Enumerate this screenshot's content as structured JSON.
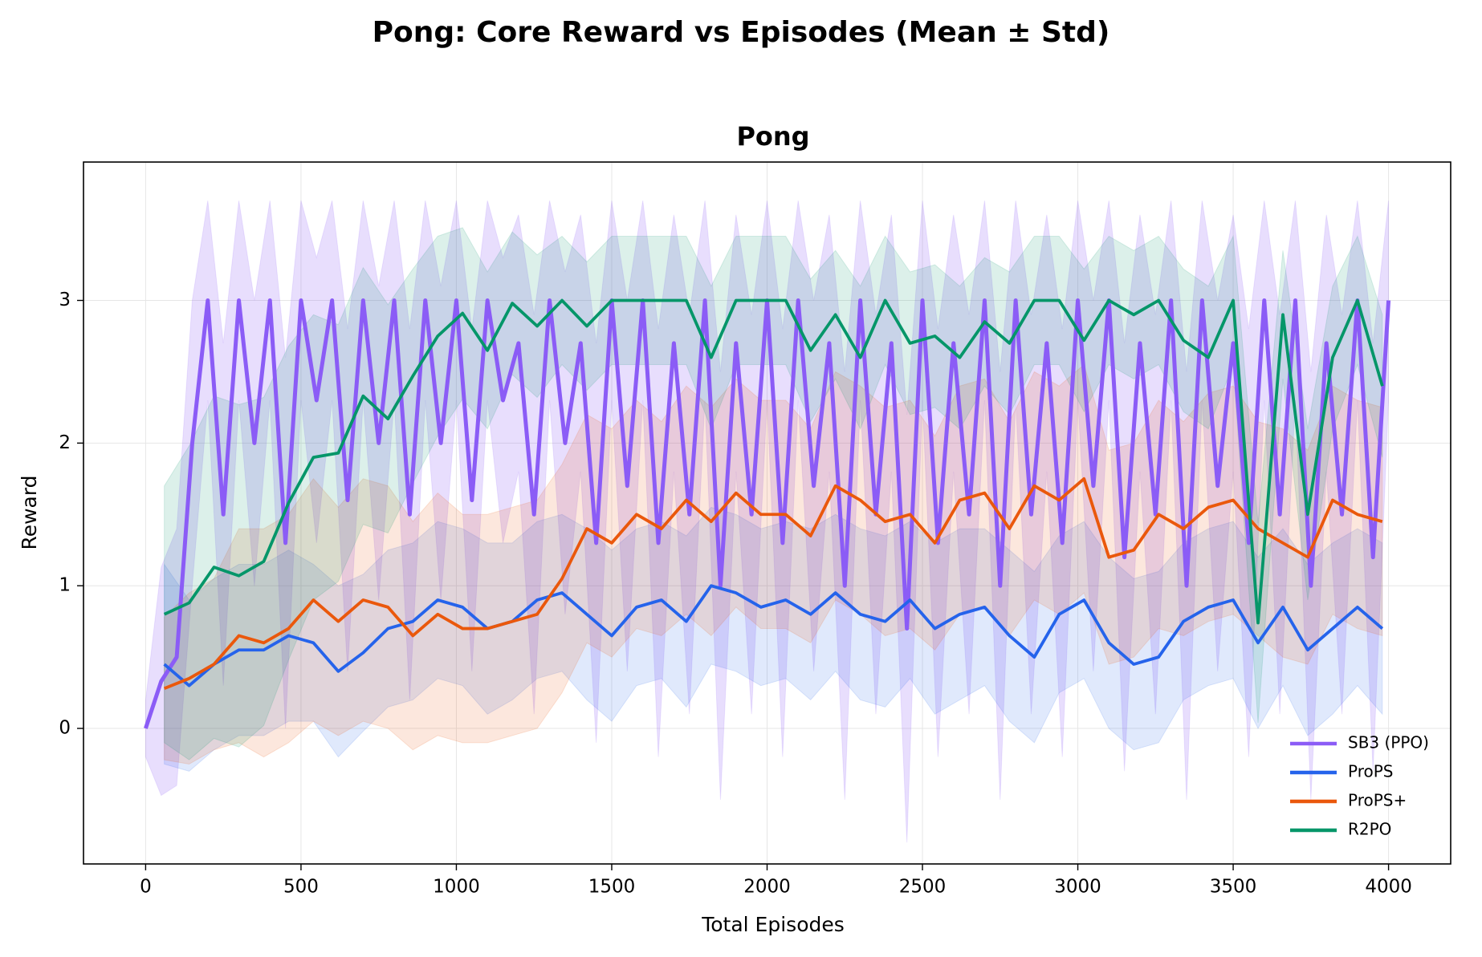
{
  "chart_data": {
    "type": "line",
    "title": "Pong: Core Reward vs Episodes (Mean ± Std)",
    "subtitle": "Pong",
    "x_label": "Total Episodes",
    "y_label": "Reward",
    "xlim": [
      -200,
      4200
    ],
    "ylim": [
      -0.95,
      3.97
    ],
    "xticks": [
      0,
      500,
      1000,
      1500,
      2000,
      2500,
      3000,
      3500,
      4000
    ],
    "yticks": [
      0,
      1,
      2,
      3
    ],
    "grid": true,
    "legend": "lower right",
    "x": [
      60,
      140,
      220,
      300,
      380,
      460,
      540,
      620,
      700,
      780,
      860,
      940,
      1020,
      1100,
      1180,
      1260,
      1340,
      1420,
      1500,
      1580,
      1660,
      1740,
      1820,
      1900,
      1980,
      2060,
      2140,
      2220,
      2300,
      2380,
      2460,
      2540,
      2620,
      2700,
      2780,
      2860,
      2940,
      3020,
      3100,
      3180,
      3260,
      3340,
      3420,
      3500,
      3580,
      3660,
      3740,
      3820,
      3900,
      3980
    ],
    "series": [
      {
        "name": "SB3 (PPO)",
        "color": "#8b5cf6",
        "x": [
          0,
          50,
          100,
          150,
          200,
          250,
          300,
          350,
          400,
          450,
          500,
          550,
          600,
          650,
          700,
          750,
          800,
          850,
          900,
          950,
          1000,
          1050,
          1100,
          1150,
          1200,
          1250,
          1300,
          1350,
          1400,
          1450,
          1500,
          1550,
          1600,
          1650,
          1700,
          1750,
          1800,
          1850,
          1900,
          1950,
          2000,
          2050,
          2100,
          2150,
          2200,
          2250,
          2300,
          2350,
          2400,
          2450,
          2500,
          2550,
          2600,
          2650,
          2700,
          2750,
          2800,
          2850,
          2900,
          2950,
          3000,
          3050,
          3100,
          3150,
          3200,
          3250,
          3300,
          3350,
          3400,
          3450,
          3500,
          3550,
          3600,
          3650,
          3700,
          3750,
          3800,
          3850,
          3900,
          3950,
          4000
        ],
        "values": [
          0,
          0.33,
          0.5,
          2.0,
          3.0,
          1.5,
          3.0,
          2.0,
          3.0,
          1.3,
          3.0,
          2.3,
          3.0,
          1.6,
          3.0,
          2.0,
          3.0,
          1.5,
          3.0,
          2.0,
          3.0,
          1.6,
          3.0,
          2.3,
          2.7,
          1.5,
          3.0,
          2.0,
          2.7,
          1.3,
          3.0,
          1.7,
          3.0,
          1.3,
          2.7,
          1.5,
          3.0,
          1.0,
          2.7,
          1.5,
          3.0,
          1.3,
          3.0,
          1.7,
          2.7,
          1.0,
          3.0,
          1.5,
          2.7,
          0.7,
          3.0,
          1.3,
          2.7,
          1.5,
          3.0,
          1.0,
          3.0,
          1.5,
          2.7,
          1.3,
          3.0,
          1.7,
          3.0,
          1.2,
          2.7,
          1.5,
          3.0,
          1.0,
          3.0,
          1.7,
          2.7,
          1.3,
          3.0,
          1.5,
          3.0,
          1.0,
          2.7,
          1.5,
          3.0,
          1.2,
          3.0
        ],
        "std": [
          0.2,
          0.8,
          0.9,
          1.0,
          0.7,
          1.2,
          0.7,
          1.0,
          0.7,
          1.3,
          0.7,
          1.0,
          0.7,
          1.2,
          0.7,
          1.1,
          0.7,
          1.3,
          0.7,
          1.1,
          0.7,
          1.2,
          0.7,
          1.0,
          0.9,
          1.4,
          0.7,
          1.2,
          0.9,
          1.4,
          0.7,
          1.3,
          0.7,
          1.5,
          0.9,
          1.4,
          0.7,
          1.5,
          0.9,
          1.4,
          0.7,
          1.5,
          0.7,
          1.3,
          0.9,
          1.5,
          0.7,
          1.4,
          0.9,
          1.5,
          0.7,
          1.5,
          0.9,
          1.4,
          0.7,
          1.5,
          0.7,
          1.4,
          0.9,
          1.5,
          0.7,
          1.3,
          0.7,
          1.5,
          0.9,
          1.4,
          0.7,
          1.5,
          0.7,
          1.3,
          0.9,
          1.5,
          0.7,
          1.4,
          0.7,
          1.5,
          0.9,
          1.4,
          0.7,
          1.5,
          0.7
        ]
      },
      {
        "name": "ProPS",
        "color": "#2563eb",
        "values": [
          0.45,
          0.3,
          0.45,
          0.55,
          0.55,
          0.65,
          0.6,
          0.4,
          0.53,
          0.7,
          0.75,
          0.9,
          0.85,
          0.7,
          0.75,
          0.9,
          0.95,
          0.8,
          0.65,
          0.85,
          0.9,
          0.75,
          1.0,
          0.95,
          0.85,
          0.9,
          0.8,
          0.95,
          0.8,
          0.75,
          0.9,
          0.7,
          0.8,
          0.85,
          0.65,
          0.5,
          0.8,
          0.9,
          0.6,
          0.45,
          0.5,
          0.75,
          0.85,
          0.9,
          0.6,
          0.85,
          0.55,
          0.7,
          0.85,
          0.7
        ],
        "std": [
          0.7,
          0.6,
          0.6,
          0.6,
          0.6,
          0.6,
          0.55,
          0.6,
          0.55,
          0.55,
          0.55,
          0.55,
          0.55,
          0.6,
          0.55,
          0.55,
          0.55,
          0.6,
          0.6,
          0.55,
          0.55,
          0.6,
          0.55,
          0.55,
          0.55,
          0.55,
          0.6,
          0.55,
          0.6,
          0.6,
          0.55,
          0.6,
          0.6,
          0.55,
          0.6,
          0.6,
          0.55,
          0.55,
          0.6,
          0.6,
          0.6,
          0.55,
          0.55,
          0.55,
          0.6,
          0.55,
          0.6,
          0.6,
          0.55,
          0.6
        ]
      },
      {
        "name": "ProPS+",
        "color": "#ea580c",
        "values": [
          0.28,
          0.35,
          0.45,
          0.65,
          0.6,
          0.7,
          0.9,
          0.75,
          0.9,
          0.85,
          0.65,
          0.8,
          0.7,
          0.7,
          0.75,
          0.8,
          1.05,
          1.4,
          1.3,
          1.5,
          1.4,
          1.6,
          1.45,
          1.65,
          1.5,
          1.5,
          1.35,
          1.7,
          1.6,
          1.45,
          1.5,
          1.3,
          1.6,
          1.65,
          1.4,
          1.7,
          1.6,
          1.75,
          1.2,
          1.25,
          1.5,
          1.4,
          1.55,
          1.6,
          1.4,
          1.3,
          1.2,
          1.6,
          1.5,
          1.45
        ],
        "std": [
          0.5,
          0.6,
          0.6,
          0.75,
          0.8,
          0.8,
          0.85,
          0.8,
          0.85,
          0.85,
          0.8,
          0.85,
          0.8,
          0.8,
          0.8,
          0.8,
          0.8,
          0.8,
          0.8,
          0.8,
          0.75,
          0.8,
          0.8,
          0.8,
          0.8,
          0.8,
          0.75,
          0.8,
          0.8,
          0.8,
          0.8,
          0.75,
          0.8,
          0.8,
          0.75,
          0.8,
          0.8,
          0.8,
          0.75,
          0.75,
          0.8,
          0.75,
          0.8,
          0.8,
          0.75,
          0.8,
          0.75,
          0.8,
          0.8,
          0.8
        ]
      },
      {
        "name": "R2PO",
        "color": "#059669",
        "values": [
          0.8,
          0.88,
          1.13,
          1.07,
          1.17,
          1.58,
          1.9,
          1.93,
          2.33,
          2.17,
          2.47,
          2.75,
          2.91,
          2.65,
          2.98,
          2.82,
          3.0,
          2.82,
          3.0,
          3.0,
          3.0,
          3.0,
          2.6,
          3.0,
          3.0,
          3.0,
          2.65,
          2.9,
          2.6,
          3.0,
          2.7,
          2.75,
          2.6,
          2.85,
          2.7,
          3.0,
          3.0,
          2.72,
          3.0,
          2.9,
          3.0,
          2.72,
          2.6,
          3.0,
          0.74,
          2.9,
          1.5,
          2.6,
          3.0,
          2.4
        ],
        "std": [
          0.9,
          1.1,
          1.2,
          1.2,
          1.15,
          1.1,
          1.0,
          0.9,
          0.9,
          0.8,
          0.75,
          0.7,
          0.6,
          0.55,
          0.5,
          0.5,
          0.45,
          0.45,
          0.45,
          0.45,
          0.45,
          0.45,
          0.5,
          0.45,
          0.45,
          0.45,
          0.5,
          0.45,
          0.5,
          0.45,
          0.5,
          0.5,
          0.5,
          0.45,
          0.5,
          0.45,
          0.45,
          0.5,
          0.45,
          0.45,
          0.45,
          0.5,
          0.5,
          0.45,
          0.7,
          0.45,
          0.6,
          0.5,
          0.45,
          0.5
        ]
      }
    ]
  }
}
